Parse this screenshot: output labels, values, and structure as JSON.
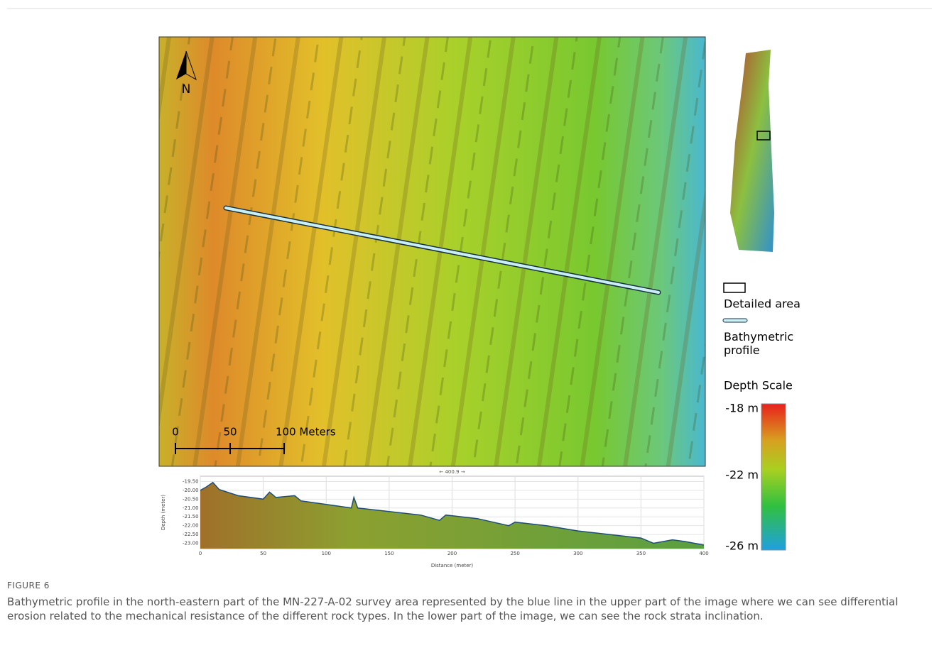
{
  "map": {
    "north_label": "N",
    "scale_labels": [
      "0",
      "50",
      "100 Meters"
    ]
  },
  "legend": {
    "detailed_area": "Detailed area",
    "profile": "Bathymetric profile",
    "depth_title": "Depth Scale",
    "depth_labels": [
      "-18 m",
      "-22 m",
      "-26 m"
    ]
  },
  "chart_data": {
    "type": "area",
    "top_label": "← 400.9 →",
    "y_label": "Depth (meter)",
    "x_label": "Distance (meter)",
    "xlim": [
      0,
      400
    ],
    "ylim": [
      -23.3,
      -19.2
    ],
    "xticks": [
      0,
      50,
      100,
      150,
      200,
      250,
      300,
      350,
      400
    ],
    "yticks": [
      {
        "value": -19.5,
        "label": "-19.50"
      },
      {
        "value": -20,
        "label": "-20.00"
      },
      {
        "value": -20.5,
        "label": "-20.50"
      },
      {
        "value": -21,
        "label": "-21.00"
      },
      {
        "value": -21.5,
        "label": "-21.50"
      },
      {
        "value": -22,
        "label": "-22.00"
      },
      {
        "value": -22.5,
        "label": "-22.50"
      },
      {
        "value": -23,
        "label": "-23.00"
      }
    ],
    "x": [
      0,
      5,
      10,
      15,
      30,
      50,
      55,
      60,
      75,
      80,
      100,
      120,
      122,
      125,
      150,
      175,
      190,
      195,
      220,
      245,
      250,
      275,
      300,
      325,
      350,
      360,
      375,
      385,
      400
    ],
    "values": [
      -20.0,
      -19.8,
      -19.55,
      -19.95,
      -20.3,
      -20.5,
      -20.1,
      -20.4,
      -20.3,
      -20.6,
      -20.8,
      -21.0,
      -20.4,
      -21.0,
      -21.2,
      -21.4,
      -21.7,
      -21.4,
      -21.6,
      -22.0,
      -21.8,
      -22.0,
      -22.3,
      -22.5,
      -22.7,
      -23.0,
      -22.8,
      -22.9,
      -23.1
    ],
    "color": "#1f4e79"
  },
  "caption": {
    "label": "FIGURE 6",
    "text": "Bathymetric profile in the north-eastern part of the MN-227-A-02 survey area represented by the blue line in the upper part of the image where we can see differential erosion related to the mechanical resistance of the different rock types. In the lower part of the image, we can see the rock strata inclination."
  }
}
